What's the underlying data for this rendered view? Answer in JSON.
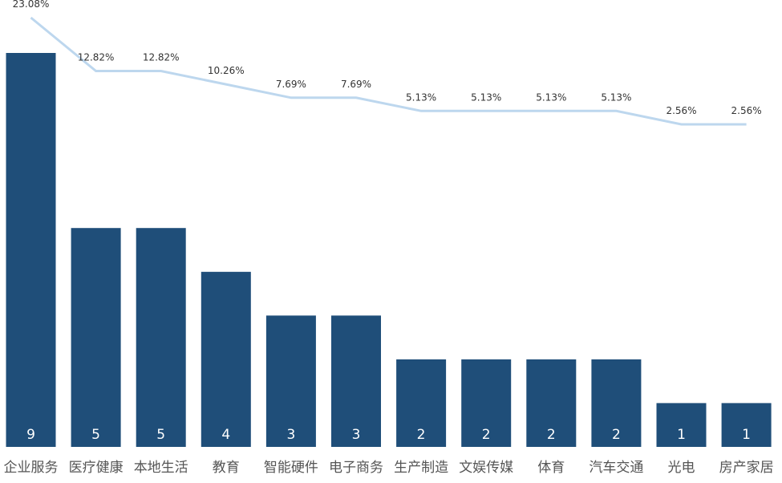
{
  "chart_data": {
    "type": "bar",
    "categories": [
      "企业服务",
      "医疗健康",
      "本地生活",
      "教育",
      "智能硬件",
      "电子商务",
      "生产制造",
      "文娱传媒",
      "体育",
      "汽车交通",
      "光电",
      "房产家居"
    ],
    "series": [
      {
        "type": "bar",
        "values": [
          9,
          5,
          5,
          4,
          3,
          3,
          2,
          2,
          2,
          2,
          1,
          1
        ],
        "color": "#1f4e79"
      },
      {
        "type": "line",
        "values": [
          23.08,
          12.82,
          12.82,
          10.26,
          7.69,
          7.69,
          5.13,
          5.13,
          5.13,
          5.13,
          2.56,
          2.56
        ],
        "labels": [
          "23.08%",
          "12.82%",
          "12.82%",
          "10.26%",
          "7.69%",
          "7.69%",
          "5.13%",
          "5.13%",
          "5.13%",
          "5.13%",
          "2.56%",
          "2.56%"
        ],
        "color": "#bdd7ee"
      }
    ],
    "bar_ylim": [
      0,
      9
    ],
    "line_ylim": [
      2.56,
      23.08
    ],
    "grid": false,
    "legend": "none"
  }
}
